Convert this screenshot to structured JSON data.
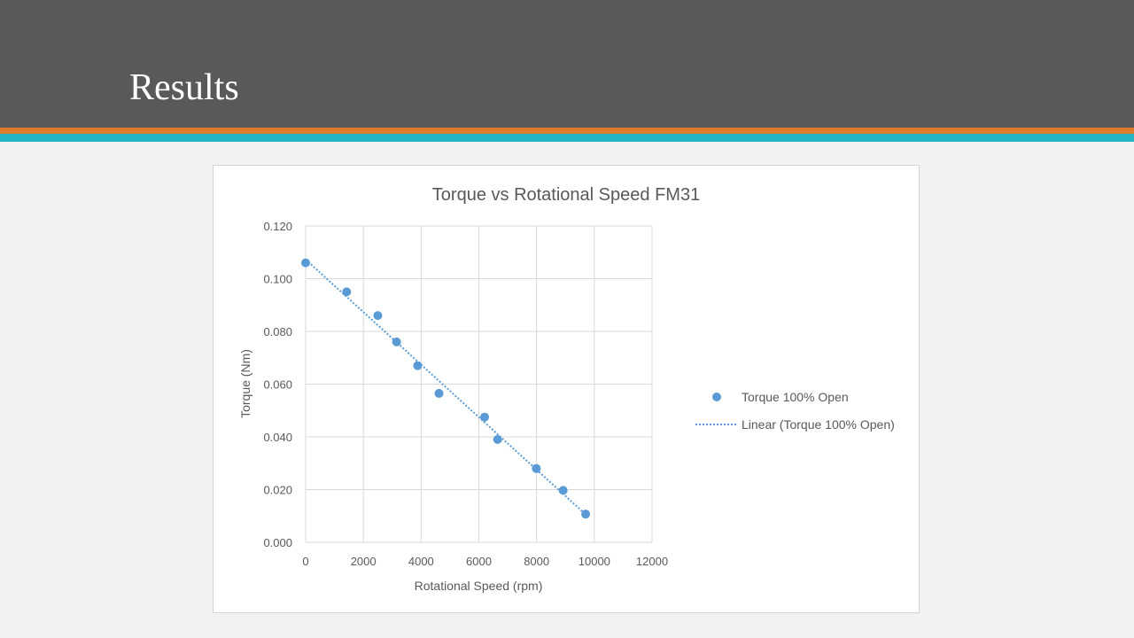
{
  "slide": {
    "title": "Results"
  },
  "colors": {
    "header": "#595959",
    "stripe_orange": "#e07b2c",
    "stripe_teal": "#26b5c2",
    "marker": "#5b9bd5",
    "grid": "#d9d9d9"
  },
  "chart_data": {
    "type": "scatter",
    "title": "Torque vs Rotational Speed FM31",
    "xlabel": "Rotational Speed (rpm)",
    "ylabel": "Torque (Nm)",
    "xlim": [
      0,
      12000
    ],
    "ylim": [
      0,
      0.12
    ],
    "xticks": [
      "0",
      "2000",
      "4000",
      "6000",
      "8000",
      "10000",
      "12000"
    ],
    "yticks": [
      "0.000",
      "0.020",
      "0.040",
      "0.060",
      "0.080",
      "0.100",
      "0.120"
    ],
    "grid": true,
    "legend_position": "right",
    "series": [
      {
        "name": "Torque 100% Open",
        "marker": "circle",
        "color": "#5b9bd5",
        "x": [
          0,
          1420,
          2500,
          3150,
          3880,
          4620,
          6200,
          6650,
          7990,
          8920,
          9700
        ],
        "y": [
          0.106,
          0.095,
          0.086,
          0.076,
          0.067,
          0.0565,
          0.0475,
          0.039,
          0.028,
          0.0197,
          0.0107
        ]
      }
    ],
    "trendline": {
      "name": "Linear (Torque 100% Open)",
      "type": "linear",
      "style": "dotted",
      "color": "#5b9bd5",
      "x_range": [
        0,
        9700
      ]
    }
  }
}
